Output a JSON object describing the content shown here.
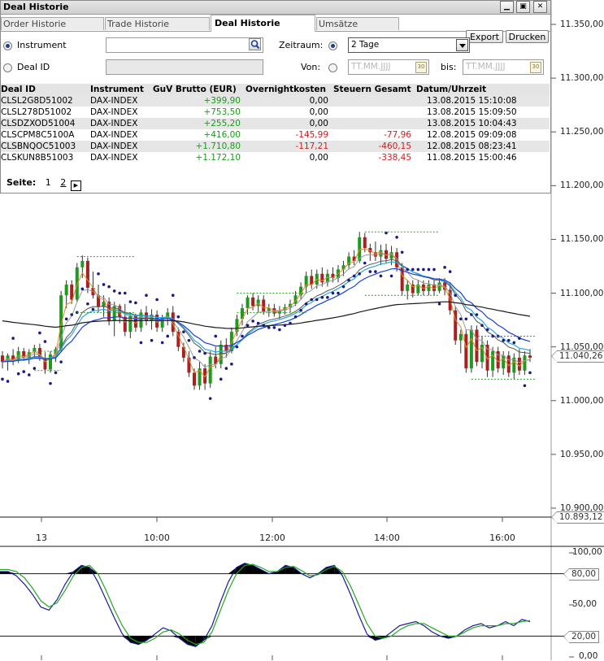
{
  "window": {
    "title": "Deal Historie",
    "controls": [
      "minimize",
      "maximize",
      "close"
    ]
  },
  "tabs": [
    {
      "label": "Order Historie",
      "active": false
    },
    {
      "label": "Trade Historie",
      "active": false
    },
    {
      "label": "Deal Historie",
      "active": true
    },
    {
      "label": "Umsätze",
      "active": false
    }
  ],
  "actions": {
    "export_label": "Export",
    "print_label": "Drucken"
  },
  "filters": {
    "instrument_label": "Instrument",
    "instrument_selected": true,
    "instrument_value": "",
    "deal_id_label": "Deal ID",
    "deal_id_selected": false,
    "deal_id_value": "",
    "zeitraum_label": "Zeitraum:",
    "zeitraum_selected": true,
    "zeitraum_value": "2 Tage",
    "von_label": "Von:",
    "von_selected": false,
    "von_placeholder": "TT.MM.JJJJ",
    "bis_label": "bis:",
    "bis_placeholder": "TT.MM.JJJJ",
    "calendar_glyph": "30"
  },
  "table": {
    "columns": [
      "Deal ID",
      "Instrument",
      "GuV Brutto (EUR)",
      "Overnightkosten",
      "Steuern Gesamt",
      "Datum/Uhrzeit"
    ],
    "rows": [
      {
        "deal_id": "CLSL2G8D51002",
        "instrument": "DAX-INDEX",
        "guv": "+399,90",
        "overnight": "0,00",
        "steuern": "",
        "datum": "13.08.2015 15:10:08"
      },
      {
        "deal_id": "CLSL278D51002",
        "instrument": "DAX-INDEX",
        "guv": "+753,50",
        "overnight": "0,00",
        "steuern": "",
        "datum": "13.08.2015 15:09:50"
      },
      {
        "deal_id": "CLSDZXOD51004",
        "instrument": "DAX-INDEX",
        "guv": "+255,20",
        "overnight": "0,00",
        "steuern": "",
        "datum": "13.08.2015 10:04:43"
      },
      {
        "deal_id": "CLSCPM8C5100A",
        "instrument": "DAX-INDEX",
        "guv": "+416,00",
        "overnight": "-145,99",
        "steuern": "-77,96",
        "datum": "12.08.2015 09:09:08"
      },
      {
        "deal_id": "CLSBNQOC51003",
        "instrument": "DAX-INDEX",
        "guv": "+1.710,80",
        "overnight": "-117,21",
        "steuern": "-460,15",
        "datum": "12.08.2015 08:23:41"
      },
      {
        "deal_id": "CLSKUN8B51003",
        "instrument": "DAX-INDEX",
        "guv": "+1.172,10",
        "overnight": "0,00",
        "steuern": "-338,45",
        "datum": "11.08.2015 15:00:46"
      }
    ]
  },
  "pager": {
    "label": "Seite:",
    "pages": [
      "1",
      "2"
    ],
    "current": "1",
    "next_glyph": "▶"
  },
  "chart_data": [
    {
      "type": "candlestick",
      "instrument": "DAX-INDEX",
      "price_axis": {
        "ticks": [
          "11.350,00",
          "11.300,00",
          "11.250,00",
          "11.200,00",
          "11.150,00",
          "11.100,00",
          "11.050,00",
          "11.000,00",
          "10.950,00",
          "10.900,00"
        ],
        "ylim": [
          10900,
          11370
        ]
      },
      "time_axis": {
        "ticks": [
          "13",
          "10:00",
          "12:00",
          "14:00",
          "16:00"
        ]
      },
      "current_price_tag": "11.040,26",
      "lower_bound_tag": "10.893,12",
      "candles": [
        {
          "o": 11042,
          "h": 11046,
          "l": 11030,
          "c": 11036
        },
        {
          "o": 11036,
          "h": 11044,
          "l": 11028,
          "c": 11042
        },
        {
          "o": 11042,
          "h": 11048,
          "l": 11033,
          "c": 11037
        },
        {
          "o": 11037,
          "h": 11050,
          "l": 11035,
          "c": 11046
        },
        {
          "o": 11046,
          "h": 11049,
          "l": 11037,
          "c": 11040
        },
        {
          "o": 11040,
          "h": 11048,
          "l": 11034,
          "c": 11045
        },
        {
          "o": 11045,
          "h": 11052,
          "l": 11040,
          "c": 11049
        },
        {
          "o": 11049,
          "h": 11053,
          "l": 11037,
          "c": 11040
        },
        {
          "o": 11040,
          "h": 11045,
          "l": 11025,
          "c": 11029
        },
        {
          "o": 11029,
          "h": 11046,
          "l": 11026,
          "c": 11043
        },
        {
          "o": 11043,
          "h": 11050,
          "l": 11036,
          "c": 11048
        },
        {
          "o": 11048,
          "h": 11102,
          "l": 11046,
          "c": 11098
        },
        {
          "o": 11098,
          "h": 11112,
          "l": 11086,
          "c": 11108
        },
        {
          "o": 11108,
          "h": 11112,
          "l": 11090,
          "c": 11094
        },
        {
          "o": 11094,
          "h": 11128,
          "l": 11092,
          "c": 11124
        },
        {
          "o": 11124,
          "h": 11135,
          "l": 11114,
          "c": 11130
        },
        {
          "o": 11130,
          "h": 11133,
          "l": 11100,
          "c": 11105
        },
        {
          "o": 11105,
          "h": 11120,
          "l": 11095,
          "c": 11098
        },
        {
          "o": 11098,
          "h": 11108,
          "l": 11082,
          "c": 11087
        },
        {
          "o": 11087,
          "h": 11098,
          "l": 11078,
          "c": 11092
        },
        {
          "o": 11092,
          "h": 11096,
          "l": 11070,
          "c": 11074
        },
        {
          "o": 11074,
          "h": 11092,
          "l": 11060,
          "c": 11088
        },
        {
          "o": 11088,
          "h": 11090,
          "l": 11072,
          "c": 11078
        },
        {
          "o": 11078,
          "h": 11090,
          "l": 11060,
          "c": 11064
        },
        {
          "o": 11064,
          "h": 11082,
          "l": 11058,
          "c": 11079
        },
        {
          "o": 11079,
          "h": 11081,
          "l": 11064,
          "c": 11068
        },
        {
          "o": 11068,
          "h": 11085,
          "l": 11064,
          "c": 11082
        },
        {
          "o": 11082,
          "h": 11088,
          "l": 11070,
          "c": 11074
        },
        {
          "o": 11074,
          "h": 11085,
          "l": 11066,
          "c": 11080
        },
        {
          "o": 11080,
          "h": 11084,
          "l": 11064,
          "c": 11068
        },
        {
          "o": 11068,
          "h": 11080,
          "l": 11064,
          "c": 11077
        },
        {
          "o": 11077,
          "h": 11086,
          "l": 11070,
          "c": 11082
        },
        {
          "o": 11082,
          "h": 11088,
          "l": 11060,
          "c": 11064
        },
        {
          "o": 11064,
          "h": 11068,
          "l": 11046,
          "c": 11050
        },
        {
          "o": 11050,
          "h": 11054,
          "l": 11036,
          "c": 11040
        },
        {
          "o": 11040,
          "h": 11046,
          "l": 11022,
          "c": 11026
        },
        {
          "o": 11026,
          "h": 11030,
          "l": 11010,
          "c": 11014
        },
        {
          "o": 11014,
          "h": 11036,
          "l": 11010,
          "c": 11030
        },
        {
          "o": 11030,
          "h": 11034,
          "l": 11010,
          "c": 11016
        },
        {
          "o": 11016,
          "h": 11046,
          "l": 11012,
          "c": 11041
        },
        {
          "o": 11041,
          "h": 11050,
          "l": 11030,
          "c": 11034
        },
        {
          "o": 11034,
          "h": 11056,
          "l": 11030,
          "c": 11052
        },
        {
          "o": 11052,
          "h": 11058,
          "l": 11040,
          "c": 11046
        },
        {
          "o": 11046,
          "h": 11068,
          "l": 11044,
          "c": 11064
        },
        {
          "o": 11064,
          "h": 11080,
          "l": 11060,
          "c": 11076
        },
        {
          "o": 11076,
          "h": 11090,
          "l": 11070,
          "c": 11086
        },
        {
          "o": 11086,
          "h": 11098,
          "l": 11080,
          "c": 11096
        },
        {
          "o": 11096,
          "h": 11100,
          "l": 11084,
          "c": 11088
        },
        {
          "o": 11088,
          "h": 11098,
          "l": 11082,
          "c": 11094
        },
        {
          "o": 11094,
          "h": 11098,
          "l": 11080,
          "c": 11083
        },
        {
          "o": 11083,
          "h": 11090,
          "l": 11078,
          "c": 11086
        },
        {
          "o": 11086,
          "h": 11090,
          "l": 11078,
          "c": 11081
        },
        {
          "o": 11081,
          "h": 11088,
          "l": 11076,
          "c": 11084
        },
        {
          "o": 11084,
          "h": 11090,
          "l": 11080,
          "c": 11087
        },
        {
          "o": 11087,
          "h": 11094,
          "l": 11082,
          "c": 11090
        },
        {
          "o": 11090,
          "h": 11102,
          "l": 11088,
          "c": 11098
        },
        {
          "o": 11098,
          "h": 11110,
          "l": 11094,
          "c": 11106
        },
        {
          "o": 11106,
          "h": 11120,
          "l": 11100,
          "c": 11116
        },
        {
          "o": 11116,
          "h": 11122,
          "l": 11104,
          "c": 11108
        },
        {
          "o": 11108,
          "h": 11122,
          "l": 11104,
          "c": 11118
        },
        {
          "o": 11118,
          "h": 11124,
          "l": 11106,
          "c": 11110
        },
        {
          "o": 11110,
          "h": 11122,
          "l": 11106,
          "c": 11118
        },
        {
          "o": 11118,
          "h": 11124,
          "l": 11110,
          "c": 11114
        },
        {
          "o": 11114,
          "h": 11126,
          "l": 11110,
          "c": 11122
        },
        {
          "o": 11122,
          "h": 11130,
          "l": 11116,
          "c": 11126
        },
        {
          "o": 11126,
          "h": 11138,
          "l": 11122,
          "c": 11134
        },
        {
          "o": 11134,
          "h": 11140,
          "l": 11126,
          "c": 11130
        },
        {
          "o": 11130,
          "h": 11157,
          "l": 11128,
          "c": 11152
        },
        {
          "o": 11152,
          "h": 11156,
          "l": 11138,
          "c": 11142
        },
        {
          "o": 11142,
          "h": 11146,
          "l": 11130,
          "c": 11138
        },
        {
          "o": 11138,
          "h": 11148,
          "l": 11130,
          "c": 11134
        },
        {
          "o": 11134,
          "h": 11145,
          "l": 11126,
          "c": 11140
        },
        {
          "o": 11140,
          "h": 11146,
          "l": 11128,
          "c": 11132
        },
        {
          "o": 11132,
          "h": 11144,
          "l": 11126,
          "c": 11138
        },
        {
          "o": 11138,
          "h": 11142,
          "l": 11120,
          "c": 11124
        },
        {
          "o": 11124,
          "h": 11128,
          "l": 11098,
          "c": 11102
        },
        {
          "o": 11102,
          "h": 11112,
          "l": 11094,
          "c": 11108
        },
        {
          "o": 11108,
          "h": 11112,
          "l": 11096,
          "c": 11100
        },
        {
          "o": 11100,
          "h": 11112,
          "l": 11098,
          "c": 11108
        },
        {
          "o": 11108,
          "h": 11112,
          "l": 11098,
          "c": 11102
        },
        {
          "o": 11102,
          "h": 11112,
          "l": 11098,
          "c": 11108
        },
        {
          "o": 11108,
          "h": 11112,
          "l": 11098,
          "c": 11102
        },
        {
          "o": 11102,
          "h": 11114,
          "l": 11100,
          "c": 11110
        },
        {
          "o": 11110,
          "h": 11114,
          "l": 11098,
          "c": 11103
        },
        {
          "o": 11103,
          "h": 11110,
          "l": 11080,
          "c": 11084
        },
        {
          "o": 11084,
          "h": 11088,
          "l": 11052,
          "c": 11056
        },
        {
          "o": 11056,
          "h": 11066,
          "l": 11044,
          "c": 11062
        },
        {
          "o": 11062,
          "h": 11066,
          "l": 11026,
          "c": 11030
        },
        {
          "o": 11030,
          "h": 11070,
          "l": 11026,
          "c": 11066
        },
        {
          "o": 11066,
          "h": 11070,
          "l": 11032,
          "c": 11036
        },
        {
          "o": 11036,
          "h": 11060,
          "l": 11030,
          "c": 11052
        },
        {
          "o": 11052,
          "h": 11056,
          "l": 11022,
          "c": 11028
        },
        {
          "o": 11028,
          "h": 11050,
          "l": 11022,
          "c": 11046
        },
        {
          "o": 11046,
          "h": 11050,
          "l": 11026,
          "c": 11030
        },
        {
          "o": 11030,
          "h": 11046,
          "l": 11024,
          "c": 11042
        },
        {
          "o": 11042,
          "h": 11046,
          "l": 11022,
          "c": 11026
        },
        {
          "o": 11026,
          "h": 11044,
          "l": 11020,
          "c": 11040
        },
        {
          "o": 11040,
          "h": 11048,
          "l": 11024,
          "c": 11028
        },
        {
          "o": 11028,
          "h": 11046,
          "l": 11024,
          "c": 11042
        },
        {
          "o": 11042,
          "h": 11048,
          "l": 11036,
          "c": 11040
        }
      ],
      "indicator_colors": {
        "bull": "#1f9a1f",
        "bear": "#a82020",
        "sar": "#1a1a80",
        "ma_orange": "#e08a2c",
        "ma_gray": "#9a9a9a",
        "ma_dark": "#555555",
        "ma_cyan": "#29a8e0",
        "ma_blue": "#1a3fe0",
        "ma_black": "#1a1a1a",
        "range_box": "#2a9a2a"
      }
    },
    {
      "type": "line",
      "name": "oscillator",
      "y_axis": {
        "ticks": [
          "100,00",
          "80,00",
          "50,00",
          "20,00",
          "0,00"
        ],
        "ylim": [
          0,
          100
        ]
      },
      "levels": [
        80,
        20
      ],
      "series": [
        {
          "color": "#1a1a9a",
          "values": [
            82,
            82,
            78,
            70,
            60,
            48,
            45,
            55,
            70,
            82,
            88,
            86,
            72,
            55,
            38,
            22,
            14,
            12,
            16,
            22,
            28,
            25,
            18,
            12,
            10,
            16,
            30,
            52,
            72,
            86,
            90,
            88,
            84,
            80,
            82,
            88,
            86,
            80,
            76,
            80,
            86,
            88,
            78,
            60,
            40,
            22,
            16,
            18,
            24,
            30,
            32,
            34,
            30,
            24,
            20,
            18,
            20,
            26,
            30,
            32,
            28,
            30,
            34,
            30,
            36,
            34
          ]
        },
        {
          "color": "#23a823",
          "values": [
            84,
            84,
            82,
            76,
            66,
            54,
            48,
            52,
            64,
            78,
            86,
            88,
            80,
            64,
            46,
            30,
            18,
            14,
            14,
            18,
            24,
            26,
            22,
            16,
            12,
            14,
            24,
            44,
            64,
            80,
            88,
            89,
            86,
            82,
            82,
            86,
            87,
            83,
            78,
            79,
            84,
            87,
            82,
            68,
            50,
            32,
            20,
            18,
            20,
            26,
            30,
            32,
            32,
            28,
            24,
            20,
            20,
            24,
            28,
            30,
            30,
            30,
            32,
            32,
            34,
            35
          ]
        }
      ]
    }
  ]
}
